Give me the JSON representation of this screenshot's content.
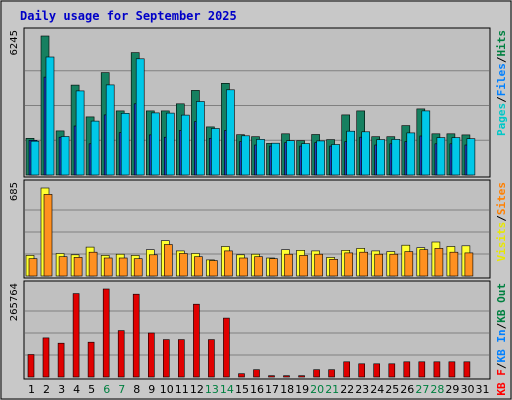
{
  "chart_data": {
    "type": "bar",
    "title": "Daily usage for September 2025",
    "categories": [
      "1",
      "2",
      "3",
      "4",
      "5",
      "6",
      "7",
      "8",
      "9",
      "10",
      "11",
      "12",
      "13",
      "14",
      "15",
      "16",
      "17",
      "18",
      "19",
      "20",
      "21",
      "22",
      "23",
      "24",
      "25",
      "26",
      "27",
      "28",
      "29",
      "30",
      "31"
    ],
    "weekend_days": [
      "6",
      "7",
      "13",
      "14",
      "20",
      "21",
      "27",
      "28"
    ],
    "panels": [
      {
        "name": "pages-files-hits",
        "max_label": "6245",
        "ylim": [
          0,
          6245
        ],
        "legend": [
          {
            "text": "Pages",
            "color": "#00c8c8"
          },
          {
            "text": "Files",
            "color": "#0080ff"
          },
          {
            "text": "Hits",
            "color": "#008040"
          }
        ],
        "series": [
          {
            "name": "Hits",
            "color": "#168060",
            "values": [
              1650,
              6245,
              1980,
              4040,
              2610,
              4600,
              2880,
              5500,
              2880,
              2880,
              3200,
              3800,
              2160,
              4120,
              1810,
              1720,
              1420,
              1850,
              1540,
              1820,
              1590,
              2700,
              2880,
              1720,
              1720,
              2220,
              2970,
              1850,
              1850,
              1800,
              0
            ]
          },
          {
            "name": "Files",
            "color": "#1840c0",
            "values": [
              1560,
              4400,
              1700,
              2200,
              1400,
              2700,
              1900,
              3200,
              1800,
              1700,
              2000,
              2400,
              1650,
              2000,
              1500,
              1350,
              1300,
              1450,
              1300,
              1450,
              1300,
              1500,
              1700,
              1350,
              1400,
              1500,
              1750,
              1400,
              1400,
              1350,
              0
            ]
          },
          {
            "name": "Pages",
            "color": "#00c8e8",
            "values": [
              1520,
              5300,
              1730,
              3780,
              2420,
              4050,
              2770,
              5220,
              2790,
              2780,
              2690,
              3300,
              2090,
              3830,
              1760,
              1600,
              1430,
              1540,
              1410,
              1530,
              1370,
              1970,
              1940,
              1590,
              1600,
              1890,
              2880,
              1680,
              1680,
              1630,
              0
            ]
          }
        ]
      },
      {
        "name": "kbf-sites-visits",
        "max_label": "685",
        "ylim": [
          0,
          685
        ],
        "legend": [
          {
            "text": "Visits",
            "color": "#e8e800"
          },
          {
            "text": "Sites",
            "color": "#ff8000"
          }
        ],
        "series": [
          {
            "name": "Visits",
            "color": "#ffff30",
            "values": [
              160,
              685,
              175,
              165,
              225,
              160,
              170,
              160,
              205,
              275,
              195,
              175,
              125,
              230,
              165,
              170,
              140,
              205,
              200,
              195,
              145,
              200,
              215,
              195,
              190,
              240,
              220,
              265,
              230,
              235,
              0
            ]
          },
          {
            "name": "Sites",
            "color": "#ff9020",
            "values": [
              135,
              635,
              150,
              145,
              185,
              140,
              140,
              135,
              165,
              245,
              175,
              150,
              120,
              195,
              140,
              150,
              135,
              170,
              160,
              170,
              130,
              180,
              185,
              170,
              170,
              190,
              205,
              215,
              185,
              180,
              0
            ]
          }
        ]
      },
      {
        "name": "kb",
        "max_label": "265764",
        "ylim": [
          0,
          265764
        ],
        "legend": [
          {
            "text": "KB F",
            "color": "#ff0000"
          },
          {
            "text": "KB In",
            "color": "#0080ff"
          },
          {
            "text": "KB Out",
            "color": "#008040"
          }
        ],
        "series": [
          {
            "name": "KB F",
            "color": "#e00000",
            "values": [
              68000,
              118000,
              102000,
              252000,
              105000,
              265764,
              140000,
              250000,
              133000,
              113000,
              113000,
              220000,
              113000,
              178000,
              10000,
              22000,
              4000,
              4000,
              4000,
              22000,
              22000,
              46000,
              40000,
              40000,
              40000,
              46000,
              46000,
              46000,
              46000,
              46000,
              0
            ]
          }
        ]
      }
    ]
  }
}
